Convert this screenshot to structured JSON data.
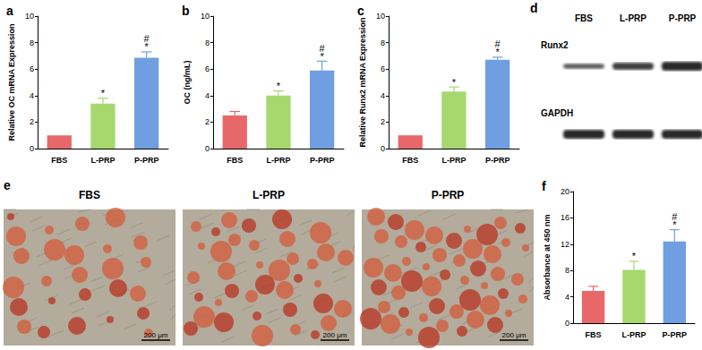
{
  "chart_data": [
    {
      "type": "bar",
      "title": "a",
      "y_label": "Relative OC mRNA Expression",
      "categories": [
        "FBS",
        "L-PRP",
        "P-PRP"
      ],
      "values": [
        1.0,
        3.4,
        6.85
      ],
      "errors": [
        0,
        0.4,
        0.45
      ],
      "colors": [
        "#e8686a",
        "#a6d86e",
        "#6f9fe0"
      ],
      "ylim": [
        0,
        10
      ],
      "yticks": [
        0,
        2,
        4,
        6,
        8,
        10
      ],
      "grid": false,
      "annotations": [
        {
          "category": "L-PRP",
          "lines": [
            "*"
          ]
        },
        {
          "category": "P-PRP",
          "lines": [
            "#",
            "*"
          ]
        }
      ]
    },
    {
      "type": "bar",
      "title": "b",
      "y_label": "OC (ng/mL)",
      "categories": [
        "FBS",
        "L-PRP",
        "P-PRP"
      ],
      "values": [
        2.5,
        4.0,
        5.9
      ],
      "errors": [
        0.3,
        0.35,
        0.7
      ],
      "colors": [
        "#e8686a",
        "#a6d86e",
        "#6f9fe0"
      ],
      "ylim": [
        0,
        10
      ],
      "yticks": [
        0,
        2,
        4,
        6,
        8,
        10
      ],
      "grid": false,
      "annotations": [
        {
          "category": "L-PRP",
          "lines": [
            "*"
          ]
        },
        {
          "category": "P-PRP",
          "lines": [
            "#",
            "*"
          ]
        }
      ]
    },
    {
      "type": "bar",
      "title": "c",
      "y_label": "Relative Runx2 mRNA Expression",
      "categories": [
        "FBS",
        "L-PRP",
        "P-PRP"
      ],
      "values": [
        1.0,
        4.3,
        6.7
      ],
      "errors": [
        0,
        0.35,
        0.2
      ],
      "colors": [
        "#e8686a",
        "#a6d86e",
        "#6f9fe0"
      ],
      "ylim": [
        0,
        10
      ],
      "yticks": [
        0,
        2,
        4,
        6,
        8,
        10
      ],
      "grid": false,
      "annotations": [
        {
          "category": "L-PRP",
          "lines": [
            "*"
          ]
        },
        {
          "category": "P-PRP",
          "lines": [
            "#",
            "*"
          ]
        }
      ]
    },
    {
      "type": "bar",
      "title": "f",
      "y_label": "Absorbance at 450 nm",
      "categories": [
        "FBS",
        "L-PRP",
        "P-PRP"
      ],
      "values": [
        4.9,
        8.1,
        12.4
      ],
      "errors": [
        0.7,
        1.3,
        1.8
      ],
      "colors": [
        "#e8686a",
        "#a6d86e",
        "#6f9fe0"
      ],
      "ylim": [
        0,
        20
      ],
      "yticks": [
        0,
        4,
        8,
        12,
        16,
        20
      ],
      "grid": false,
      "annotations": [
        {
          "category": "L-PRP",
          "lines": [
            "*"
          ]
        },
        {
          "category": "P-PRP",
          "lines": [
            "#",
            "*"
          ]
        }
      ]
    }
  ],
  "blot": {
    "title": "d",
    "lanes": [
      "FBS",
      "L-PRP",
      "P-PRP"
    ],
    "rows": [
      {
        "label": "Runx2",
        "intensity": [
          0.55,
          0.8,
          1.0
        ]
      },
      {
        "label": "GAPDH",
        "intensity": [
          1.0,
          1.0,
          1.0
        ]
      }
    ]
  },
  "images": {
    "title": "e",
    "panels": [
      "FBS",
      "L-PRP",
      "P-PRP"
    ],
    "scale_bar": "200 μm"
  }
}
